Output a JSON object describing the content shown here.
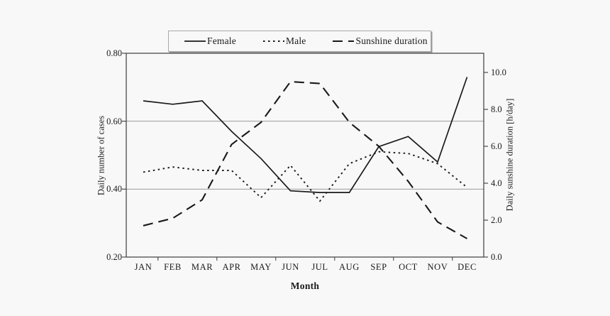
{
  "chart_data": {
    "type": "line",
    "title": "",
    "categories": [
      "JAN",
      "FEB",
      "MAR",
      "APR",
      "MAY",
      "JUN",
      "JUL",
      "AUG",
      "SEP",
      "OCT",
      "NOV",
      "DEC"
    ],
    "xlabel": "Month",
    "left_axis": {
      "label": "Daily number of cases",
      "ylim": [
        0.2,
        0.8
      ],
      "ticks": [
        0.2,
        0.4,
        0.6,
        0.8
      ],
      "tick_labels": [
        "0.20",
        "0.40",
        "0.60",
        "0.80"
      ],
      "gridlines_at": [
        0.4,
        0.6
      ]
    },
    "right_axis": {
      "label": "Daily sunshine duration [h/day]",
      "ylim": [
        0.0,
        11.04
      ],
      "ticks": [
        0.0,
        2.0,
        4.0,
        6.0,
        8.0,
        10.0
      ],
      "tick_labels": [
        "0.0",
        "2.0",
        "4.0",
        "6.0",
        "8.0",
        "10.0"
      ]
    },
    "legend_position": "top",
    "series": [
      {
        "name": "Female",
        "axis": "left",
        "style": "solid",
        "values": [
          0.66,
          0.65,
          0.66,
          0.57,
          0.49,
          0.395,
          0.39,
          0.39,
          0.525,
          0.555,
          0.48,
          0.73
        ]
      },
      {
        "name": "Male",
        "axis": "left",
        "style": "dotted",
        "values": [
          0.45,
          0.465,
          0.455,
          0.455,
          0.375,
          0.47,
          0.365,
          0.475,
          0.51,
          0.505,
          0.475,
          0.405
        ]
      },
      {
        "name": "Sunshine duration",
        "axis": "right",
        "style": "dashed",
        "values": [
          1.7,
          2.1,
          3.1,
          6.1,
          7.3,
          9.5,
          9.4,
          7.3,
          6.0,
          4.1,
          1.9,
          1.0
        ]
      }
    ]
  },
  "colors": {
    "line": "#1a1a1a",
    "grid": "#8c8c8c",
    "axis_border": "#4a4a4a",
    "background": "#f8f8f8",
    "legend_border": "#a8a8a8"
  }
}
